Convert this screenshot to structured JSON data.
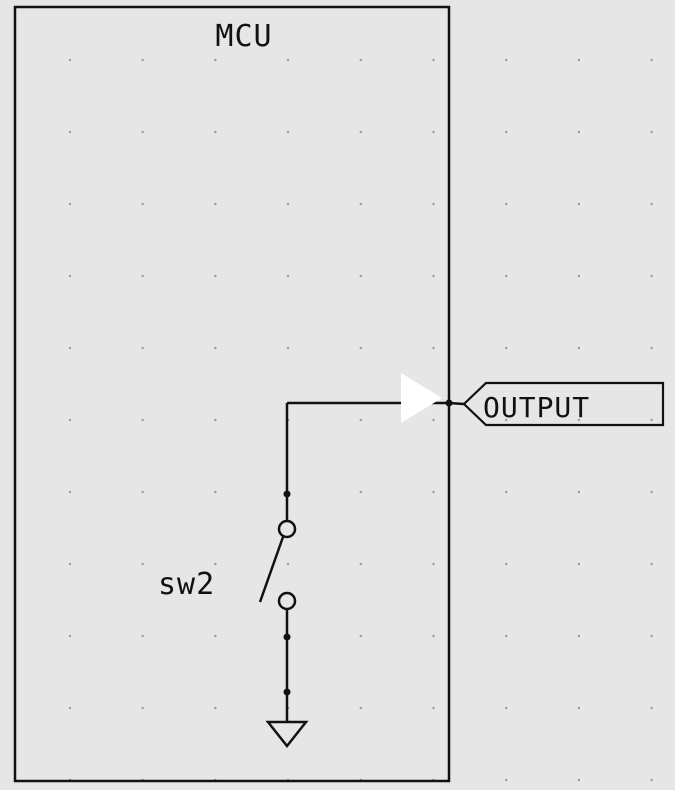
{
  "schematic": {
    "block_label": "MCU",
    "switch_label": "sw2",
    "port_label": "OUTPUT",
    "colors": {
      "background": "#e6e6e6",
      "wire": "#111111",
      "grid_dot": "#9a9a9a",
      "output_triangle": "#ffffff"
    }
  }
}
